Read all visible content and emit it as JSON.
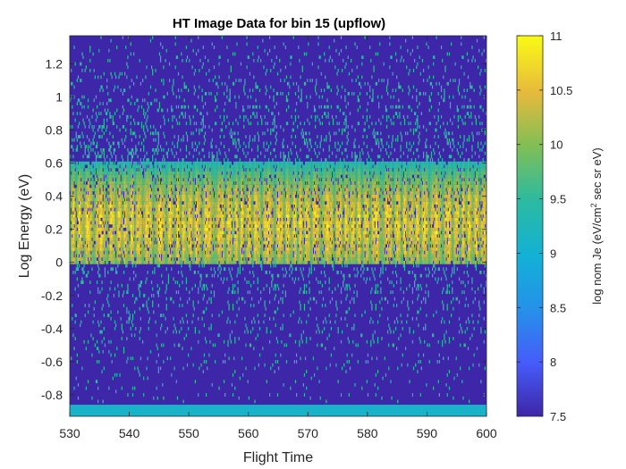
{
  "chart_data": {
    "type": "heatmap",
    "title": "HT Image Data for bin 15 (upflow)",
    "xlabel": "Flight Time",
    "ylabel": "Log Energy (eV)",
    "xlim": [
      530,
      600
    ],
    "ylim": [
      -0.93,
      1.37
    ],
    "xticks": [
      530,
      540,
      550,
      560,
      570,
      580,
      590,
      600
    ],
    "yticks": [
      -0.8,
      -0.6,
      -0.4,
      -0.2,
      0,
      0.2,
      0.4,
      0.6,
      0.8,
      1,
      1.2
    ],
    "colorbar": {
      "label_parts": [
        "log nom Je (eV/cm",
        "2",
        " sec sr eV)"
      ],
      "range": [
        7.5,
        11
      ],
      "ticks": [
        7.5,
        8,
        8.5,
        9,
        9.5,
        10,
        10.5,
        11
      ],
      "colormap": "parula"
    },
    "background_value": 7.5,
    "bottom_band": {
      "y_range": [
        -0.93,
        -0.86
      ],
      "value": 9.1
    },
    "core_band": {
      "y_range": [
        -0.02,
        0.6
      ],
      "peak_log_energy": 0.22,
      "peak_value": 10.6
    },
    "scatter_envelope": {
      "y_range": [
        -0.86,
        1.37
      ],
      "typical_value": 9.3
    }
  },
  "colors": {
    "background": "#3e26a8",
    "band": "#2cbb9f",
    "peak": "#f0ba3c"
  }
}
